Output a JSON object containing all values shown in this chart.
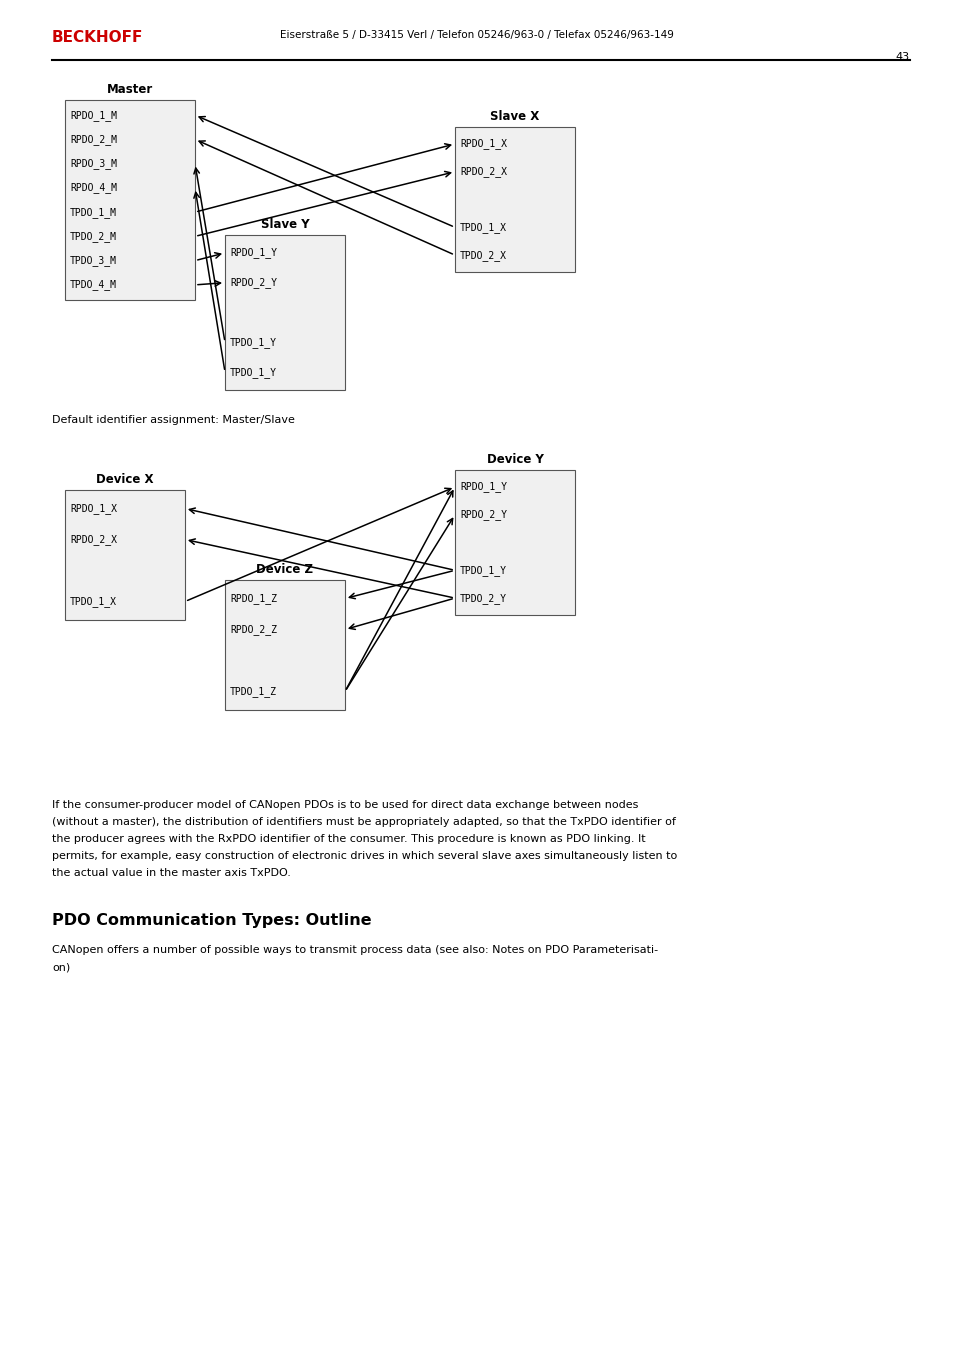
{
  "bg_color": "#ffffff",
  "beckhoff_color": "#cc0000",
  "header_text": "Eiserstraße 5 / D-33415 Verl / Telefon 05246/963-0 / Telefax 05246/963-149",
  "page_number": "43",
  "box_fill": "#f0f0f0",
  "diagram1_caption": "Default identifier assignment: Master/Slave",
  "body_text_lines": [
    "If the consumer-producer model of CANopen PDOs is to be used for direct data exchange between nodes",
    "(without a master), the distribution of identifiers must be appropriately adapted, so that the TxPDO identifier of",
    "the producer agrees with the RxPDO identifier of the consumer. This procedure is known as PDO linking. It",
    "permits, for example, easy construction of electronic drives in which several slave axes simultaneously listen to",
    "the actual value in the master axis TxPDO."
  ],
  "section_title": "PDO Communication Types: Outline",
  "section_text_lines": [
    "CANopen offers a number of possible ways to transmit process data (see also: Notes on PDO Parameterisati-",
    "on)"
  ],
  "master_items": [
    "RPDO_1_M",
    "RPDO_2_M",
    "RPDO_3_M",
    "RPDO_4_M",
    "TPDO_1_M",
    "TPDO_2_M",
    "TPDO_3_M",
    "TPDO_4_M"
  ],
  "slaveX_items": [
    "RPDO_1_X",
    "RPDO_2_X",
    "",
    "TPDO_1_X",
    "TPDO_2_X"
  ],
  "slaveY_items": [
    "RPDO_1_Y",
    "RPDO_2_Y",
    "",
    "TPDO_1_Y",
    "TPDO_1_Y"
  ],
  "devX_items": [
    "RPDO_1_X",
    "RPDO_2_X",
    "",
    "TPDO_1_X"
  ],
  "devY_items": [
    "RPDO_1_Y",
    "RPDO_2_Y",
    "",
    "TPDO_1_Y",
    "TPDO_2_Y"
  ],
  "devZ_items": [
    "RPDO_1_Z",
    "RPDO_2_Z",
    "",
    "TPDO_1_Z"
  ]
}
